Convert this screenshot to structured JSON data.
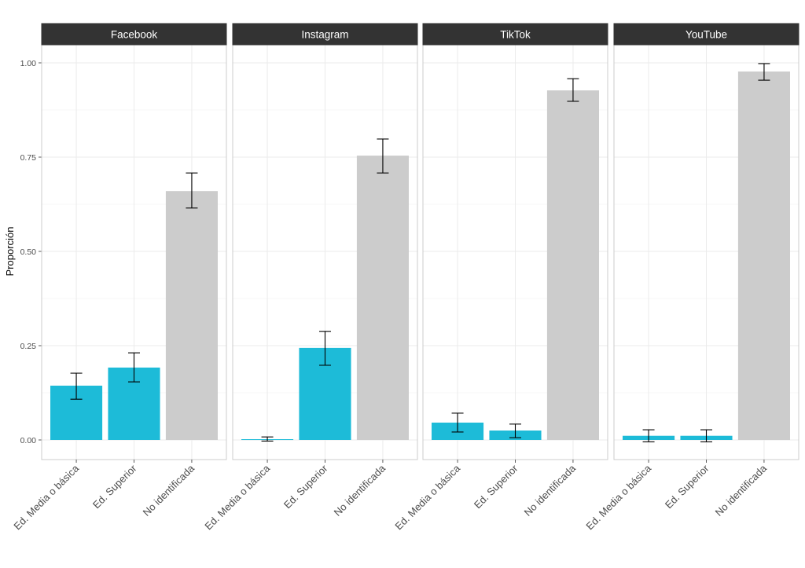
{
  "chart_data": {
    "type": "bar",
    "title": "",
    "xlabel": "",
    "ylabel": "Proporción",
    "ylim": [
      -0.05,
      1.05
    ],
    "yticks": [
      0.0,
      0.25,
      0.5,
      0.75,
      1.0
    ],
    "ytick_labels": [
      "0.00",
      "0.25",
      "0.50",
      "0.75",
      "1.00"
    ],
    "grid": true,
    "categories": [
      "Ed. Media o básica",
      "Ed. Superior",
      "No identificada"
    ],
    "colors": {
      "highlight": "#1DBBD8",
      "neutral": "#CCCCCC",
      "strip": "#333333",
      "errorbar": "#000000"
    },
    "facets": [
      {
        "name": "Facebook",
        "values": [
          0.144,
          0.192,
          0.66
        ],
        "error_low": [
          0.108,
          0.154,
          0.615
        ],
        "error_high": [
          0.177,
          0.231,
          0.708
        ]
      },
      {
        "name": "Instagram",
        "values": [
          0.002,
          0.244,
          0.754
        ],
        "error_low": [
          -0.003,
          0.198,
          0.708
        ],
        "error_high": [
          0.008,
          0.288,
          0.798
        ]
      },
      {
        "name": "TikTok",
        "values": [
          0.046,
          0.025,
          0.927
        ],
        "error_low": [
          0.021,
          0.006,
          0.898
        ],
        "error_high": [
          0.071,
          0.042,
          0.958
        ]
      },
      {
        "name": "YouTube",
        "values": [
          0.011,
          0.011,
          0.977
        ],
        "error_low": [
          -0.005,
          -0.005,
          0.954
        ],
        "error_high": [
          0.027,
          0.027,
          0.998
        ]
      }
    ],
    "bar_fill": [
      "highlight",
      "highlight",
      "neutral"
    ]
  }
}
